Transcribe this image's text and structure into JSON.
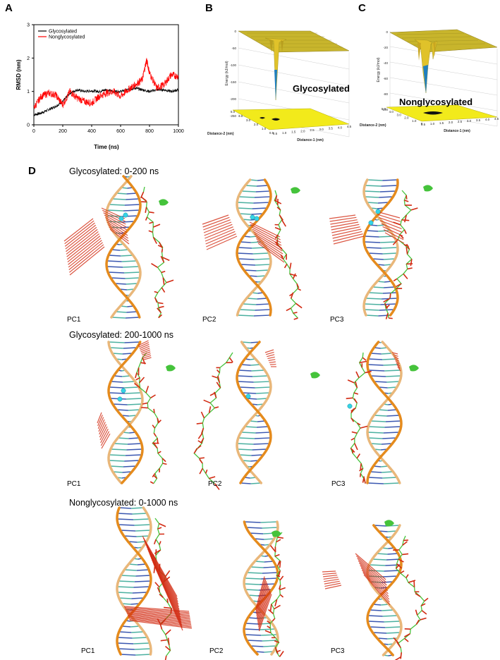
{
  "panel_labels": {
    "a": "A",
    "b": "B",
    "c": "C",
    "d": "D"
  },
  "colors": {
    "glycosylated": "#000000",
    "nonglycosylated": "#ff0000",
    "surface": "#d8c43a",
    "floor": "#f2ea1b",
    "backbone": "#e58b1d",
    "protein": "#45c33b",
    "arrow": "#d22a12",
    "ion": "#35d4e6"
  },
  "chart_data": {
    "type": "line",
    "title": "",
    "xlabel": "Time (ns)",
    "ylabel": "RMSD (nm)",
    "xlim": [
      0,
      1000
    ],
    "ylim": [
      0,
      3
    ],
    "xticks": [
      "0",
      "200",
      "400",
      "600",
      "800",
      "1000"
    ],
    "yticks": [
      "0",
      "1",
      "2",
      "3"
    ],
    "legend_position": "top-left",
    "grid": false,
    "series": [
      {
        "name": "Glycosylated",
        "color": "#000000",
        "x": [
          0,
          50,
          100,
          150,
          200,
          250,
          300,
          350,
          400,
          450,
          500,
          550,
          600,
          650,
          700,
          750,
          800,
          850,
          900,
          950,
          1000
        ],
        "y": [
          0.3,
          0.35,
          0.45,
          0.55,
          0.7,
          0.95,
          1.05,
          1.0,
          1.02,
          1.0,
          1.05,
          1.0,
          1.0,
          1.05,
          1.1,
          1.05,
          1.0,
          1.05,
          1.05,
          1.0,
          1.05
        ]
      },
      {
        "name": "Nonglycosylated",
        "color": "#ff0000",
        "x": [
          0,
          50,
          100,
          150,
          200,
          250,
          300,
          350,
          400,
          450,
          500,
          550,
          600,
          650,
          700,
          750,
          780,
          800,
          850,
          900,
          950,
          1000
        ],
        "y": [
          0.5,
          0.85,
          0.95,
          0.9,
          0.6,
          1.0,
          0.8,
          0.7,
          0.65,
          0.85,
          0.95,
          1.0,
          0.85,
          1.05,
          1.2,
          1.35,
          1.95,
          1.55,
          1.1,
          1.2,
          1.5,
          1.45
        ]
      }
    ]
  },
  "surface_b": {
    "title": "Glycosylated",
    "zlabel": "Energy (kJ/mol)",
    "xlabel": "Distance-1 (nm)",
    "ylabel": "Distance-2 (nm)",
    "zticks": [
      "0",
      "-50",
      "-100",
      "-150",
      "-200",
      "-250"
    ],
    "xticks": [
      "0.5",
      "1.0",
      "1.5",
      "2.0",
      "2.5",
      "3.0",
      "3.5",
      "4.0",
      "4.5"
    ],
    "yticks": [
      "5.0",
      "4.0",
      "3.0",
      "2.0",
      "1.0",
      "0.5"
    ]
  },
  "surface_c": {
    "title": "Nonglycosylated",
    "zlabel": "Energy (kJ/mol)",
    "xlabel": "Distance-1 (nm)",
    "ylabel": "Distance-2 (nm)",
    "zticks": [
      "0",
      "-20",
      "-40",
      "-60",
      "-80",
      "-100"
    ],
    "xticks": [
      "0.5",
      "1.0",
      "1.5",
      "2.0",
      "2.5",
      "3.0",
      "3.5",
      "4.0",
      "4.5"
    ],
    "yticks": [
      "5.0",
      "4.0",
      "3.0",
      "2.0",
      "1.0",
      "0"
    ]
  },
  "pca": {
    "rows": [
      {
        "title": "Glycosylated: 0-200 ns",
        "pcs": [
          "PC1",
          "PC2",
          "PC3"
        ]
      },
      {
        "title": "Glycosylated: 200-1000 ns",
        "pcs": [
          "PC1",
          "PC2",
          "PC3"
        ]
      },
      {
        "title": "Nonglycosylated: 0-1000 ns",
        "pcs": [
          "PC1",
          "PC2",
          "PC3"
        ]
      }
    ]
  }
}
